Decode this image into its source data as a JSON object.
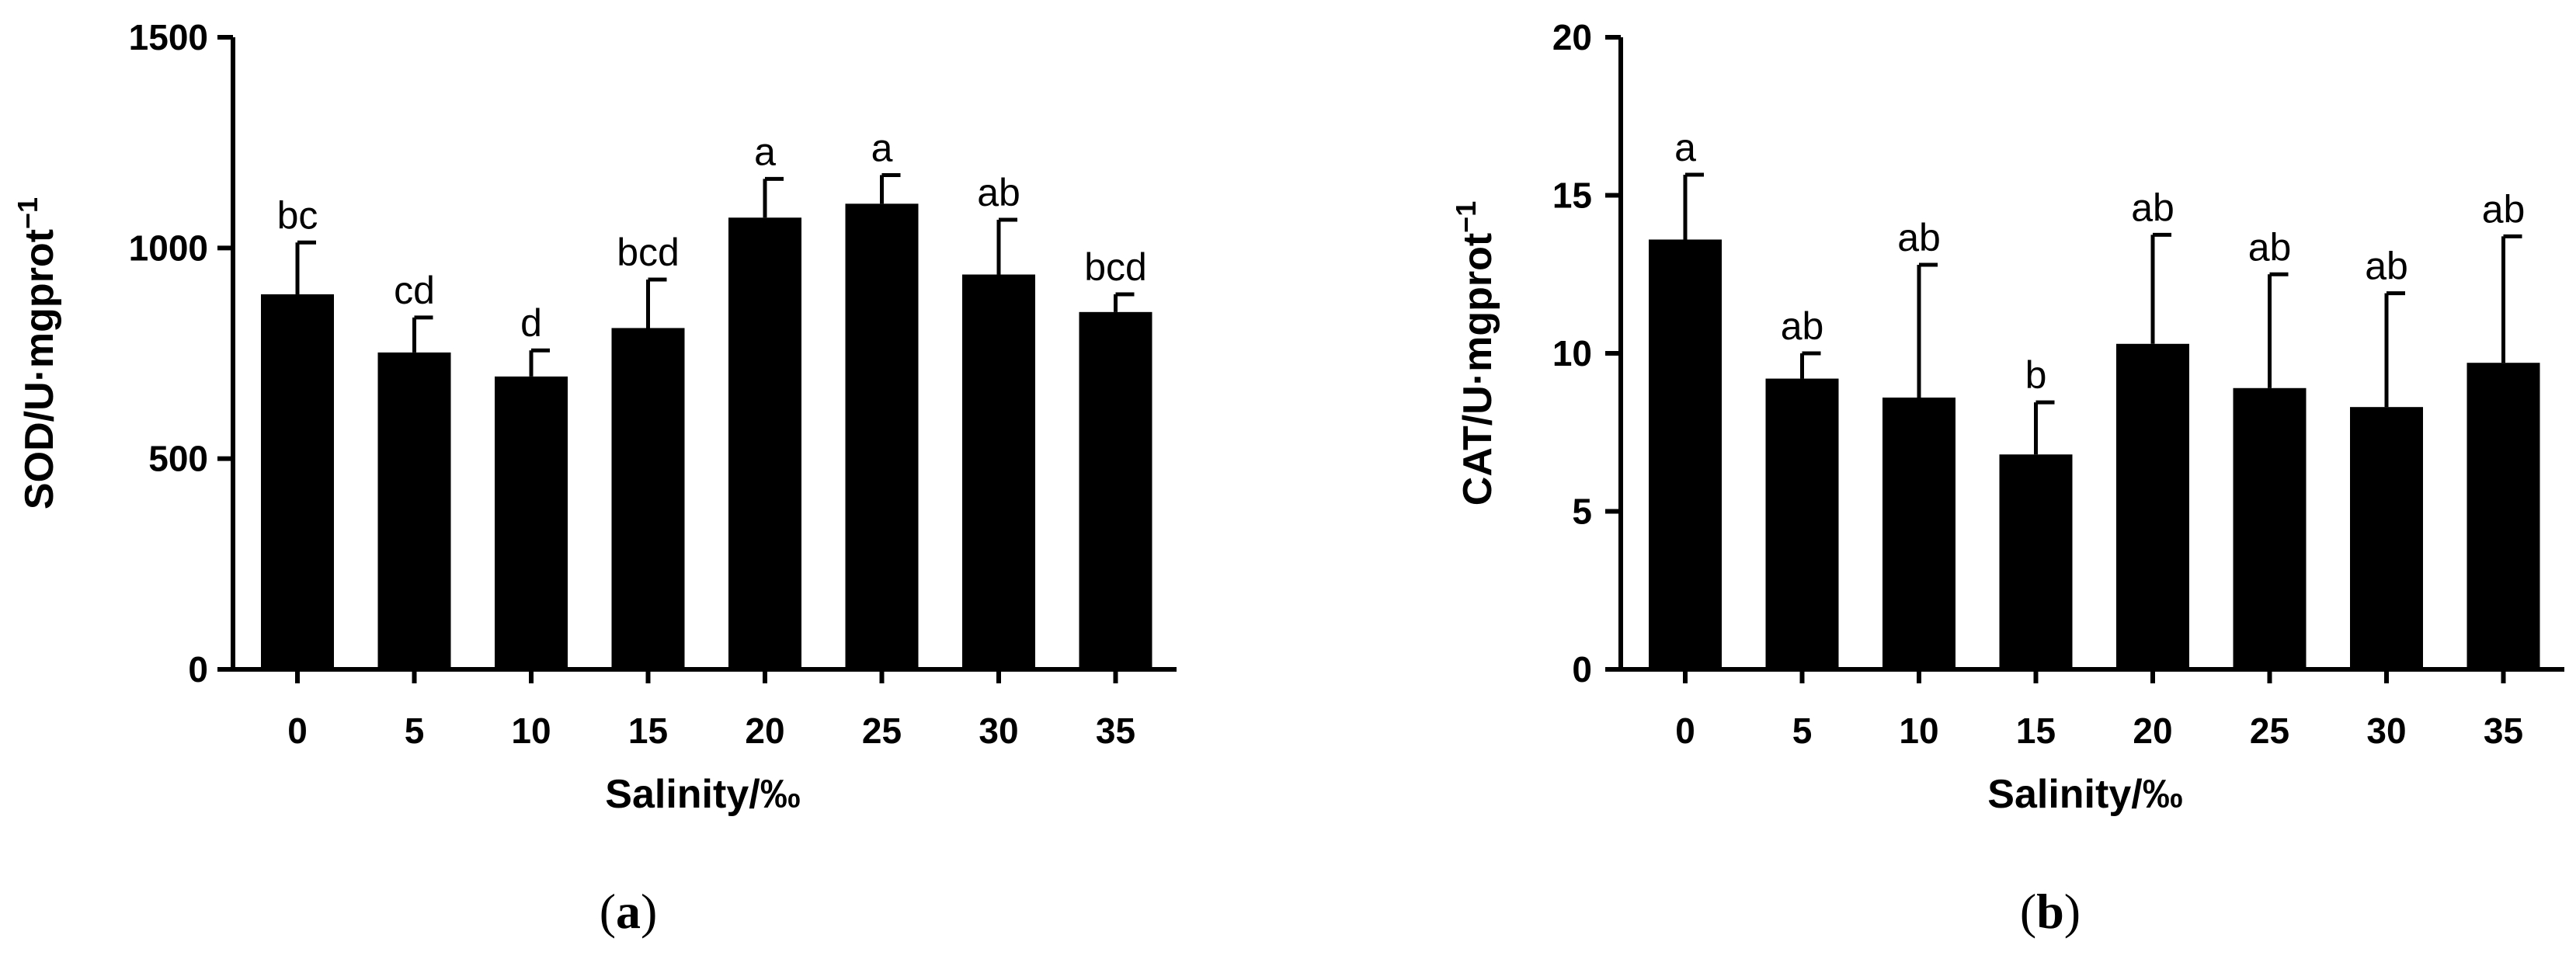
{
  "chart_data": [
    {
      "type": "bar",
      "panel_label": "a",
      "xlabel": "Salinity/‰",
      "ylabel": "SOD/U·mgprot",
      "ylabel_superscript": "−1",
      "categories": [
        "0",
        "5",
        "10",
        "15",
        "20",
        "25",
        "30",
        "35"
      ],
      "values": [
        890,
        752,
        695,
        810,
        1072,
        1105,
        937,
        848
      ],
      "error": [
        123,
        83,
        62,
        115,
        92,
        68,
        130,
        42
      ],
      "significance": [
        "bc",
        "cd",
        "d",
        "bcd",
        "a",
        "a",
        "ab",
        "bcd"
      ],
      "ylim": [
        0,
        1500
      ],
      "yticks": [
        0,
        500,
        1000,
        1500
      ],
      "bar_color": "#000000",
      "grid": false
    },
    {
      "type": "bar",
      "panel_label": "b",
      "xlabel": "Salinity/‰",
      "ylabel": "CAT/U·mgprot",
      "ylabel_superscript": "−1",
      "categories": [
        "0",
        "5",
        "10",
        "15",
        "20",
        "25",
        "30",
        "35"
      ],
      "values": [
        13.6,
        9.2,
        8.6,
        6.8,
        10.3,
        8.9,
        8.3,
        9.7
      ],
      "error": [
        2.05,
        0.8,
        4.2,
        1.65,
        3.45,
        3.6,
        3.6,
        4.0
      ],
      "significance": [
        "a",
        "ab",
        "ab",
        "b",
        "ab",
        "ab",
        "ab",
        "ab"
      ],
      "ylim": [
        0,
        20
      ],
      "yticks": [
        0,
        5,
        10,
        15,
        20
      ],
      "bar_color": "#000000",
      "grid": false
    }
  ]
}
